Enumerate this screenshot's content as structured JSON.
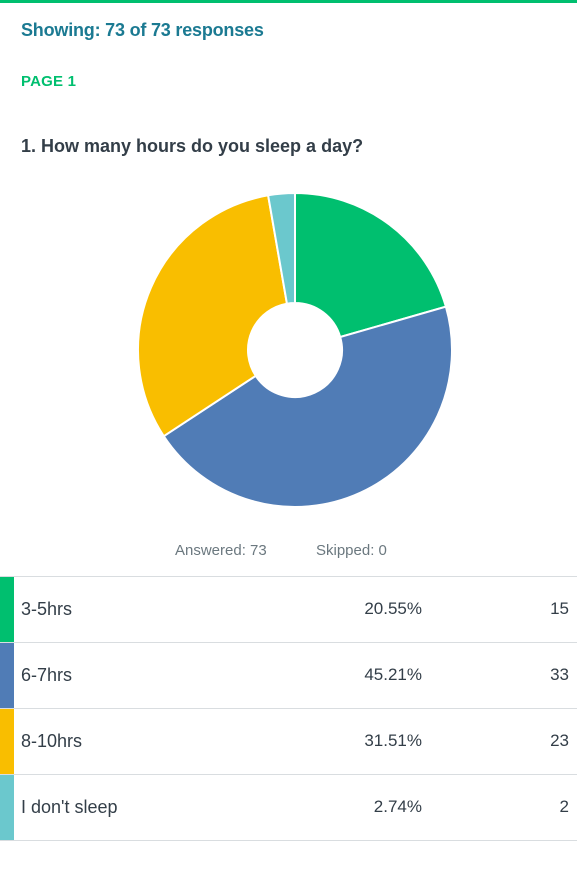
{
  "header": {
    "showing": "Showing: 73 of 73 responses",
    "page": "PAGE 1"
  },
  "question": "1. How many hours do you sleep a day?",
  "stats": {
    "answered": "Answered: 73",
    "skipped": "Skipped: 0"
  },
  "chart_data": {
    "type": "pie",
    "donut": true,
    "categories": [
      "3-5hrs",
      "6-7hrs",
      "8-10hrs",
      "I don't sleep"
    ],
    "values": [
      20.55,
      45.21,
      31.51,
      2.74
    ],
    "counts": [
      15,
      33,
      23,
      2
    ],
    "colors": [
      "#00bf6f",
      "#507cb6",
      "#f9be00",
      "#6bc8cd"
    ],
    "title": "1. How many hours do you sleep a day?"
  },
  "rows": [
    {
      "label": "3-5hrs",
      "percent": "20.55%",
      "count": "15",
      "color": "#00bf6f"
    },
    {
      "label": "6-7hrs",
      "percent": "45.21%",
      "count": "33",
      "color": "#507cb6"
    },
    {
      "label": "8-10hrs",
      "percent": "31.51%",
      "count": "23",
      "color": "#f9be00"
    },
    {
      "label": "I don't sleep",
      "percent": "2.74%",
      "count": "2",
      "color": "#6bc8cd"
    }
  ]
}
